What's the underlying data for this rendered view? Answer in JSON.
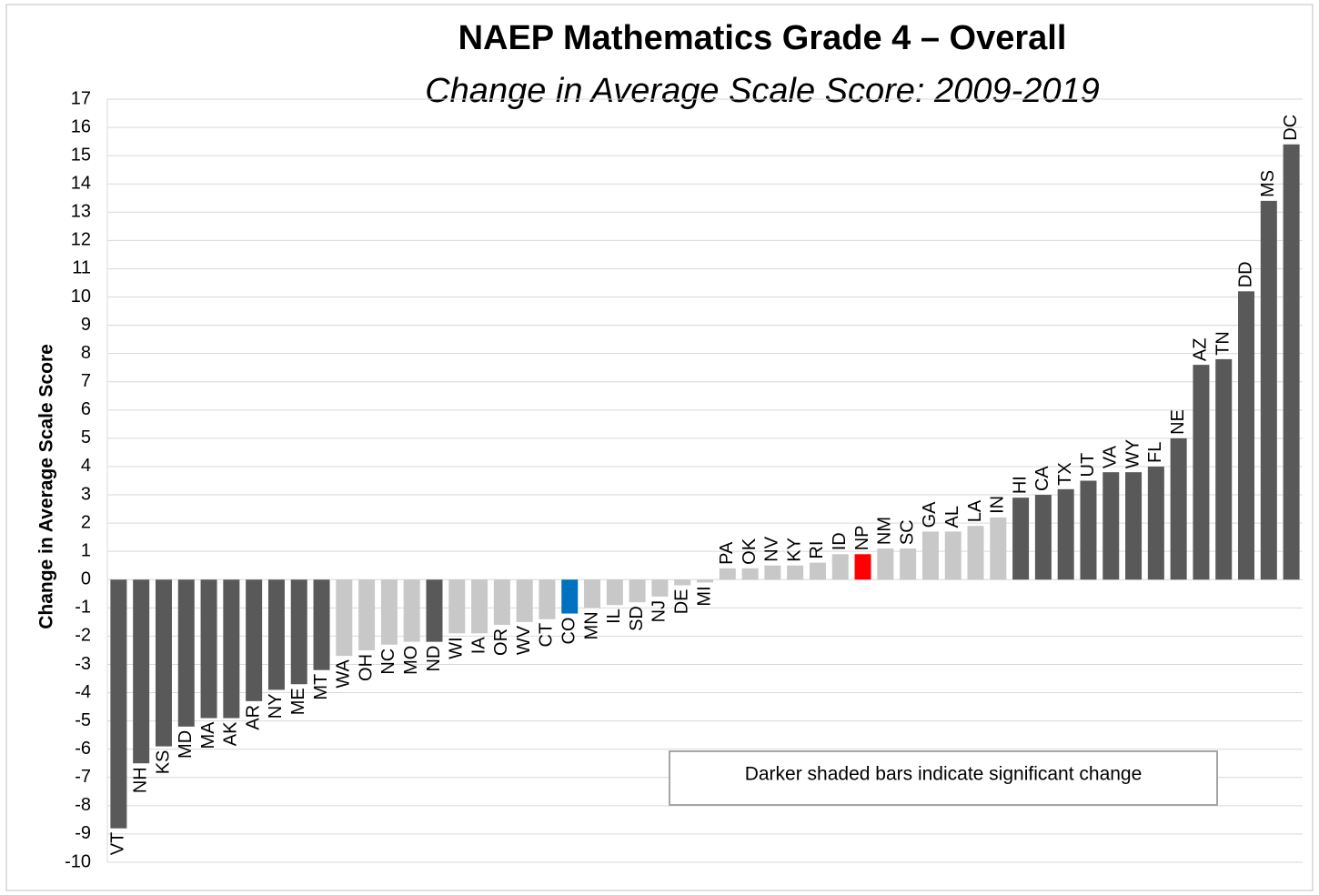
{
  "chart_data": {
    "type": "bar",
    "title": "NAEP Mathematics Grade 4 – Overall",
    "subtitle": "Change in Average Scale Score: 2009-2019",
    "y_label": "Change in Average Scale Score",
    "annotation": "Darker shaded bars indicate significant change",
    "categories": [
      "VT",
      "NH",
      "KS",
      "MD",
      "MA",
      "AK",
      "AR",
      "NY",
      "ME",
      "MT",
      "WA",
      "OH",
      "NC",
      "MO",
      "ND",
      "WI",
      "IA",
      "OR",
      "WV",
      "CT",
      "CO",
      "MN",
      "IL",
      "SD",
      "NJ",
      "DE",
      "MI",
      "PA",
      "OK",
      "NV",
      "KY",
      "RI",
      "ID",
      "NP",
      "NM",
      "SC",
      "GA",
      "AL",
      "LA",
      "IN",
      "HI",
      "CA",
      "TX",
      "UT",
      "VA",
      "WY",
      "FL",
      "NE",
      "AZ",
      "TN",
      "DD",
      "MS",
      "DC"
    ],
    "values": [
      -8.8,
      -6.5,
      -5.9,
      -5.2,
      -4.9,
      -4.9,
      -4.3,
      -3.9,
      -3.7,
      -3.2,
      -2.7,
      -2.5,
      -2.3,
      -2.2,
      -2.2,
      -1.9,
      -1.9,
      -1.6,
      -1.5,
      -1.4,
      -1.2,
      -1.0,
      -0.9,
      -0.8,
      -0.6,
      -0.2,
      -0.1,
      0.4,
      0.4,
      0.5,
      0.5,
      0.6,
      0.9,
      0.9,
      1.1,
      1.1,
      1.7,
      1.7,
      1.9,
      2.2,
      2.9,
      3.0,
      3.2,
      3.5,
      3.8,
      3.8,
      4.0,
      5.0,
      7.6,
      7.8,
      10.2,
      13.4,
      15.4
    ],
    "colors": [
      "#595959",
      "#595959",
      "#595959",
      "#595959",
      "#595959",
      "#595959",
      "#595959",
      "#595959",
      "#595959",
      "#595959",
      "#c8c8c8",
      "#c8c8c8",
      "#c8c8c8",
      "#c8c8c8",
      "#595959",
      "#c8c8c8",
      "#c8c8c8",
      "#c8c8c8",
      "#c8c8c8",
      "#c8c8c8",
      "#0070c0",
      "#c8c8c8",
      "#c8c8c8",
      "#c8c8c8",
      "#c8c8c8",
      "#c8c8c8",
      "#c8c8c8",
      "#c8c8c8",
      "#c8c8c8",
      "#c8c8c8",
      "#c8c8c8",
      "#c8c8c8",
      "#c8c8c8",
      "#ff0000",
      "#c8c8c8",
      "#c8c8c8",
      "#c8c8c8",
      "#c8c8c8",
      "#c8c8c8",
      "#c8c8c8",
      "#595959",
      "#595959",
      "#595959",
      "#595959",
      "#595959",
      "#595959",
      "#595959",
      "#595959",
      "#595959",
      "#595959",
      "#595959",
      "#595959",
      "#595959"
    ],
    "ylim": [
      -10,
      17
    ],
    "yticks": [
      -10,
      -9,
      -8,
      -7,
      -6,
      -5,
      -4,
      -3,
      -2,
      -1,
      0,
      1,
      2,
      3,
      4,
      5,
      6,
      7,
      8,
      9,
      10,
      11,
      12,
      13,
      14,
      15,
      16,
      17
    ],
    "grid": true
  }
}
